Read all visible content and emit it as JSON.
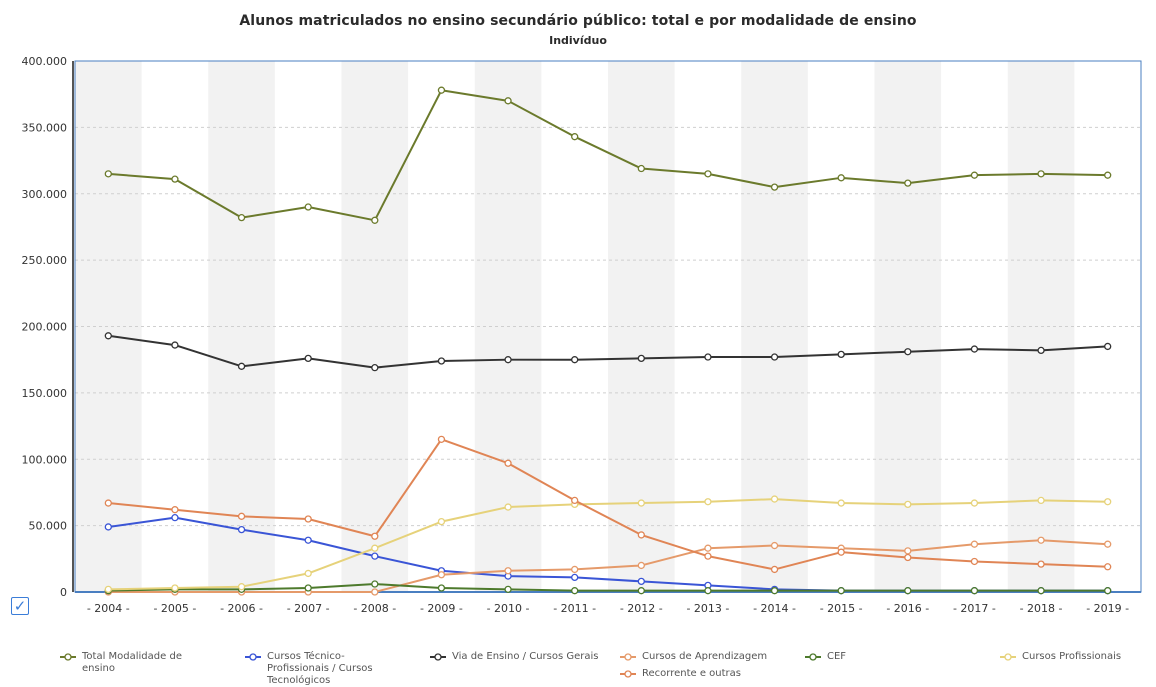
{
  "chart_data": {
    "type": "line",
    "title": "Alunos matriculados no ensino secundário público: total e por modalidade de ensino",
    "subtitle": "Indivíduo",
    "categories": [
      "2004",
      "2005",
      "2006",
      "2007",
      "2008",
      "2009",
      "2010",
      "2011",
      "2012",
      "2013",
      "2014",
      "2015",
      "2016",
      "2017",
      "2018",
      "2019"
    ],
    "ylim": [
      0,
      400000
    ],
    "y_ticks": [
      "0",
      "50.000",
      "100.000",
      "150.000",
      "200.000",
      "250.000",
      "300.000",
      "350.000",
      "400.000"
    ],
    "grid": "horizontal dashed, alternating vertical bands",
    "legend_position": "bottom",
    "series": [
      {
        "name": "Total Modalidade de ensino",
        "color": "#6b7a2c",
        "values": [
          315000,
          311000,
          282000,
          290000,
          280000,
          378000,
          370000,
          343000,
          319000,
          315000,
          305000,
          312000,
          308000,
          314000,
          315000,
          314000
        ]
      },
      {
        "name": "Cursos Técnico-Profissionais / Cursos Tecnológicos",
        "color": "#3a55d6",
        "values": [
          49000,
          56000,
          47000,
          39000,
          27000,
          16000,
          12000,
          11000,
          8000,
          5000,
          2000,
          1000,
          1000,
          1000,
          1000,
          1000
        ]
      },
      {
        "name": "Via de Ensino / Cursos Gerais",
        "color": "#333333",
        "values": [
          193000,
          186000,
          170000,
          176000,
          169000,
          174000,
          175000,
          175000,
          176000,
          177000,
          177000,
          179000,
          181000,
          183000,
          182000,
          185000
        ]
      },
      {
        "name": "Cursos de Aprendizagem",
        "color": "#e59a6a",
        "values": [
          0,
          0,
          0,
          0,
          0,
          13000,
          16000,
          17000,
          20000,
          33000,
          35000,
          33000,
          31000,
          36000,
          39000,
          36000
        ]
      },
      {
        "name": "CEF",
        "color": "#4d7a2c",
        "values": [
          1000,
          2000,
          2000,
          3000,
          6000,
          3000,
          2000,
          1000,
          1000,
          1000,
          1000,
          1000,
          1000,
          1000,
          1000,
          1000
        ]
      },
      {
        "name": "Cursos Profissionais",
        "color": "#e6d27a",
        "values": [
          2000,
          3000,
          4000,
          14000,
          33000,
          53000,
          64000,
          66000,
          67000,
          68000,
          70000,
          67000,
          66000,
          67000,
          69000,
          68000
        ]
      },
      {
        "name": "Recorrente e outras",
        "color": "#e08555",
        "values": [
          67000,
          62000,
          57000,
          55000,
          42000,
          115000,
          97000,
          69000,
          43000,
          27000,
          17000,
          30000,
          26000,
          23000,
          21000,
          19000
        ]
      }
    ]
  },
  "ui": {
    "checkbox_icon": "check-icon",
    "checkbox_glyph": "✓"
  }
}
